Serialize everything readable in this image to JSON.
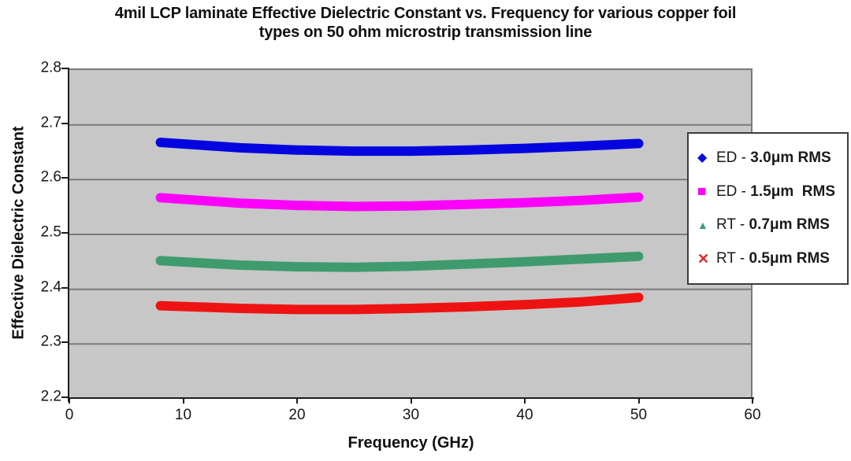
{
  "title": {
    "line1": "4mil LCP laminate Effective Dielectric Constant vs. Frequency for various copper foil",
    "line2": "types on 50 ohm microstrip transmission line"
  },
  "y_axis": {
    "title": "Effective Dielectric Constant",
    "ticks": [
      2.8,
      2.7,
      2.6,
      2.5,
      2.4,
      2.3,
      2.2
    ]
  },
  "x_axis": {
    "title": "Frequency (GHz)",
    "ticks": [
      0,
      10,
      20,
      30,
      40,
      50,
      60
    ]
  },
  "legend": {
    "items": [
      {
        "marker": "diamond",
        "color": "#0d0dd6",
        "prefix": "ED - ",
        "bold": "3.0μm RMS"
      },
      {
        "marker": "square",
        "color": "#fb02fb",
        "prefix": "ED - ",
        "bold": "1.5μm  RMS"
      },
      {
        "marker": "triangle",
        "color": "#3f9b6e",
        "prefix": "RT - ",
        "bold": "0.7μm RMS"
      },
      {
        "marker": "x",
        "color": "#e02525",
        "prefix": "RT - ",
        "bold": "0.5μm RMS"
      }
    ]
  },
  "chart_data": {
    "type": "line",
    "title": "4mil LCP laminate Effective Dielectric Constant vs. Frequency for various copper foil types on 50 ohm microstrip transmission line",
    "xlabel": "Frequency (GHz)",
    "ylabel": "Effective Dielectric Constant",
    "xlim": [
      0,
      60
    ],
    "ylim": [
      2.2,
      2.8
    ],
    "x_ticks": [
      0,
      10,
      20,
      30,
      40,
      50,
      60
    ],
    "y_ticks": [
      2.2,
      2.3,
      2.4,
      2.5,
      2.6,
      2.7,
      2.8
    ],
    "grid": "horizontal",
    "grid_color": "#7a7a7a",
    "plot_bg": "#c7c7c7",
    "legend_position": "right-overlapping-plot",
    "line_width": 12,
    "x": [
      8,
      15,
      20,
      25,
      30,
      35,
      40,
      45,
      50
    ],
    "series": [
      {
        "name": "ED - 3.0μm RMS",
        "color": "#0505e0",
        "values": [
          2.668,
          2.658,
          2.654,
          2.652,
          2.652,
          2.654,
          2.657,
          2.661,
          2.666
        ]
      },
      {
        "name": "ED - 1.5μm RMS",
        "color": "#fb02fb",
        "values": [
          2.567,
          2.557,
          2.553,
          2.551,
          2.552,
          2.555,
          2.558,
          2.562,
          2.568
        ]
      },
      {
        "name": "RT - 0.7μm RMS",
        "color": "#3f9b6e",
        "values": [
          2.452,
          2.444,
          2.441,
          2.44,
          2.442,
          2.446,
          2.45,
          2.455,
          2.46
        ]
      },
      {
        "name": "RT - 0.5μm RMS",
        "color": "#ee1313",
        "values": [
          2.37,
          2.365,
          2.363,
          2.363,
          2.365,
          2.368,
          2.372,
          2.377,
          2.385
        ]
      }
    ]
  }
}
